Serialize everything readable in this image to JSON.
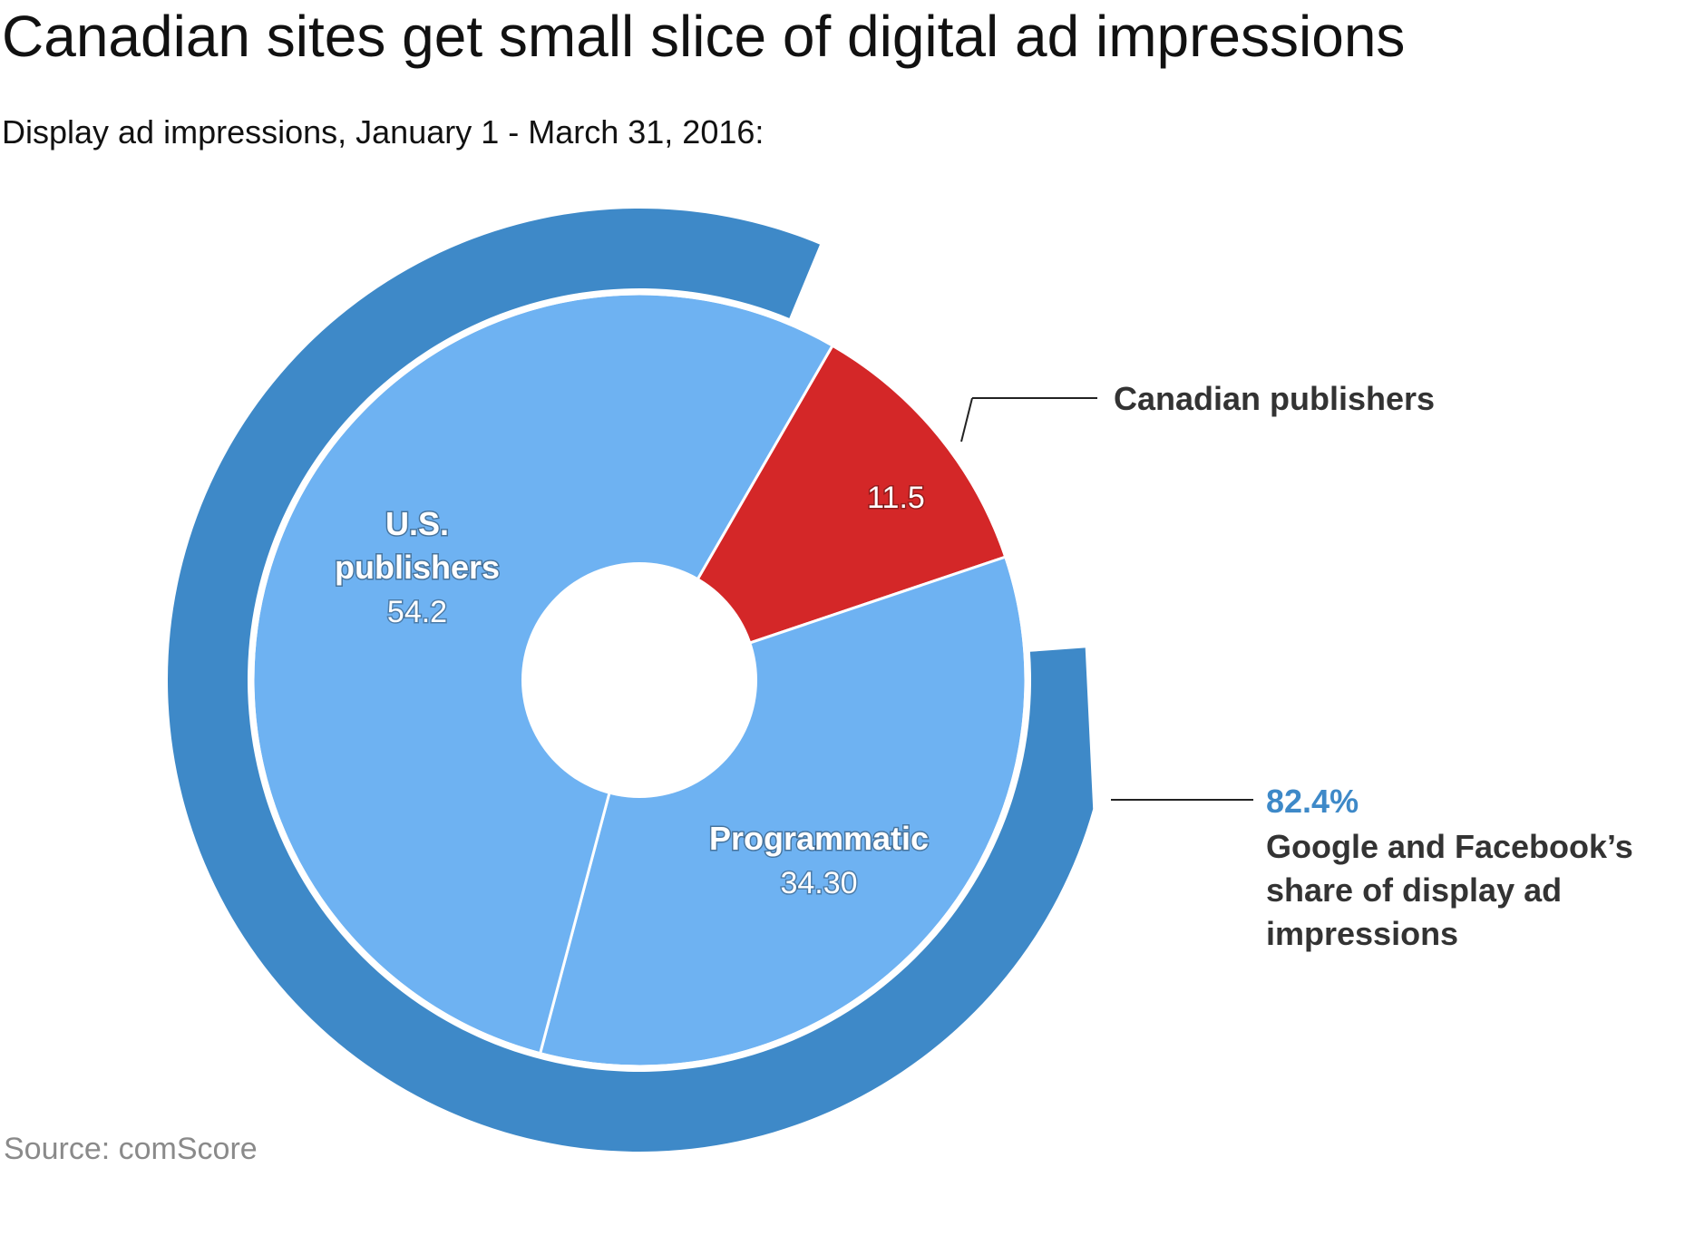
{
  "title": "Canadian sites get small slice of digital ad impressions",
  "subtitle": "Display ad impressions, January 1 - March 31, 2016:",
  "source": "Source: comScore",
  "colors": {
    "us_publishers": "#6eb2f2",
    "canadian_publishers": "#d42728",
    "programmatic": "#6eb2f2",
    "outer_ring": "#3e89c8",
    "highlight_text": "#3e89c8"
  },
  "chart_data": {
    "type": "pie",
    "inner_ring": {
      "slices": [
        {
          "name_lines": [
            "U.S.",
            "publishers"
          ],
          "value": 54.2,
          "value_label": "54.2"
        },
        {
          "name_lines": [],
          "value": 11.5,
          "value_label": "11.5",
          "callout": "Canadian publishers"
        },
        {
          "name_lines": [
            "Programmatic"
          ],
          "value": 34.3,
          "value_label": "34.30"
        }
      ]
    },
    "outer_ring": {
      "value_percent": 82.4,
      "label": "82.4%",
      "description_lines": [
        "Google and Facebook’s",
        "share of display ad",
        "impressions"
      ]
    }
  }
}
